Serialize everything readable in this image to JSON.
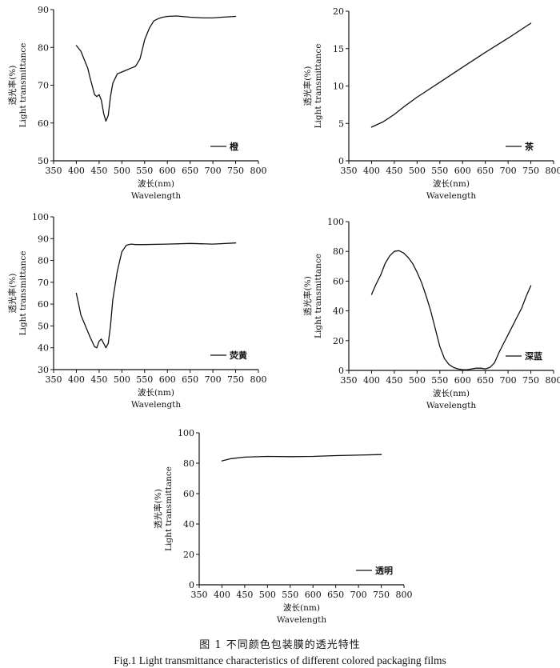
{
  "figure": {
    "caption_zh": "图 1  不同颜色包装膜的透光特性",
    "caption_en": "Fig.1 Light transmittance characteristics of different colored packaging films"
  },
  "chart_data": [
    {
      "type": "line",
      "xlabel_zh": "波长(nm)",
      "xlabel_en": "Wavelength",
      "ylabel_zh": "透光率(%)",
      "ylabel_en": "Light transmittance",
      "xlim": [
        350,
        800
      ],
      "ylim": [
        50,
        90
      ],
      "xticks": [
        350,
        400,
        450,
        500,
        550,
        600,
        650,
        700,
        750,
        800
      ],
      "yticks": [
        50,
        60,
        70,
        80,
        90
      ],
      "legend": "bottom-right",
      "series": [
        {
          "name": "橙",
          "color": "#111111",
          "x": [
            400,
            410,
            420,
            425,
            430,
            440,
            445,
            450,
            455,
            460,
            465,
            470,
            475,
            480,
            490,
            500,
            510,
            520,
            530,
            540,
            550,
            560,
            570,
            580,
            590,
            600,
            620,
            650,
            680,
            700,
            720,
            750
          ],
          "y": [
            80.5,
            79,
            76,
            74.5,
            72,
            67.5,
            67,
            67.5,
            66,
            62.5,
            60.5,
            62,
            67,
            70.5,
            73,
            73.5,
            74,
            74.5,
            75,
            77,
            82,
            85,
            87,
            87.6,
            88,
            88.2,
            88.3,
            88,
            87.8,
            87.8,
            88,
            88.2
          ]
        }
      ]
    },
    {
      "type": "line",
      "xlabel_zh": "波长(nm)",
      "xlabel_en": "Wavelength",
      "ylabel_zh": "透光率(%)",
      "ylabel_en": "Light transmittance",
      "xlim": [
        350,
        800
      ],
      "ylim": [
        0,
        20
      ],
      "xticks": [
        350,
        400,
        450,
        500,
        550,
        600,
        650,
        700,
        750,
        800
      ],
      "yticks": [
        0,
        5,
        10,
        15,
        20
      ],
      "legend": "bottom-right",
      "series": [
        {
          "name": "茶",
          "color": "#111111",
          "x": [
            400,
            425,
            450,
            475,
            500,
            550,
            600,
            650,
            700,
            750
          ],
          "y": [
            4.5,
            5.2,
            6.2,
            7.4,
            8.5,
            10.5,
            12.5,
            14.5,
            16.4,
            18.4
          ]
        }
      ]
    },
    {
      "type": "line",
      "xlabel_zh": "波长(nm)",
      "xlabel_en": "Wavelength",
      "ylabel_zh": "透光率(%)",
      "ylabel_en": "Light transmittance",
      "xlim": [
        350,
        800
      ],
      "ylim": [
        30,
        100
      ],
      "xticks": [
        350,
        400,
        450,
        500,
        550,
        600,
        650,
        700,
        750,
        800
      ],
      "yticks": [
        30,
        40,
        50,
        60,
        70,
        80,
        90,
        100
      ],
      "legend": "bottom-right",
      "series": [
        {
          "name": "荧黄",
          "color": "#111111",
          "x": [
            400,
            405,
            410,
            420,
            430,
            440,
            445,
            450,
            455,
            460,
            465,
            470,
            475,
            480,
            490,
            500,
            510,
            520,
            530,
            550,
            600,
            650,
            700,
            750
          ],
          "y": [
            65,
            60,
            55,
            50,
            45,
            40.5,
            40,
            43,
            44,
            42,
            40,
            42,
            50,
            62,
            75,
            84,
            87,
            87.5,
            87.3,
            87.3,
            87.5,
            87.8,
            87.5,
            88
          ]
        }
      ]
    },
    {
      "type": "line",
      "xlabel_zh": "波长(nm)",
      "xlabel_en": "Wavelength",
      "ylabel_zh": "透光率(%)",
      "ylabel_en": "Light transmittance",
      "xlim": [
        350,
        800
      ],
      "ylim": [
        0,
        100
      ],
      "xticks": [
        350,
        400,
        450,
        500,
        550,
        600,
        650,
        700,
        750,
        800
      ],
      "yticks": [
        0,
        20,
        40,
        60,
        80,
        100
      ],
      "legend": "bottom-right",
      "series": [
        {
          "name": "深蓝",
          "color": "#111111",
          "x": [
            400,
            410,
            420,
            430,
            440,
            450,
            460,
            470,
            480,
            490,
            500,
            510,
            520,
            530,
            540,
            550,
            560,
            570,
            580,
            590,
            600,
            610,
            620,
            630,
            640,
            650,
            660,
            670,
            680,
            690,
            700,
            710,
            720,
            730,
            740,
            750
          ],
          "y": [
            51,
            58,
            64,
            72,
            77,
            80,
            80.5,
            79,
            76,
            72,
            66,
            59,
            50,
            40,
            28,
            16,
            8,
            4,
            2,
            1,
            0.5,
            0.5,
            1,
            1.5,
            1.5,
            1,
            2,
            5,
            12,
            18,
            24,
            30,
            36,
            42,
            50,
            57
          ]
        }
      ]
    },
    {
      "type": "line",
      "xlabel_zh": "波长(nm)",
      "xlabel_en": "Wavelength",
      "ylabel_zh": "透光率(%)",
      "ylabel_en": "Light transmittance",
      "xlim": [
        350,
        800
      ],
      "ylim": [
        0,
        100
      ],
      "xticks": [
        350,
        400,
        450,
        500,
        550,
        600,
        650,
        700,
        750,
        800
      ],
      "yticks": [
        0,
        20,
        40,
        60,
        80,
        100
      ],
      "legend": "bottom-right",
      "series": [
        {
          "name": "透明",
          "color": "#111111",
          "x": [
            400,
            420,
            450,
            500,
            550,
            600,
            650,
            700,
            750
          ],
          "y": [
            81.5,
            83,
            84,
            84.5,
            84.3,
            84.5,
            85,
            85.3,
            85.7
          ]
        }
      ]
    }
  ]
}
